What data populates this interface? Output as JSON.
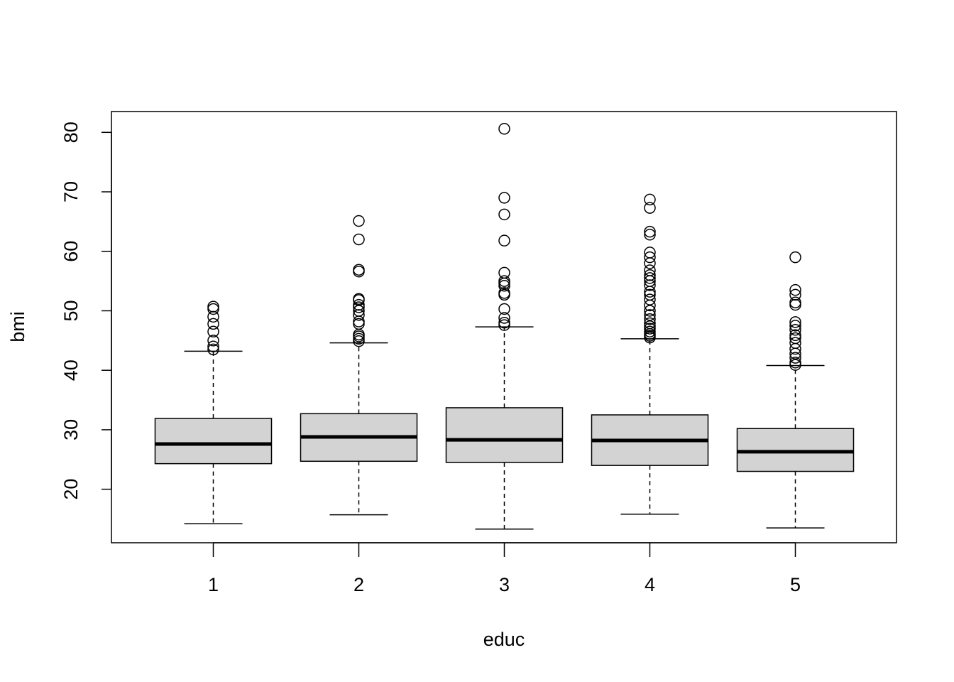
{
  "chart_data": {
    "type": "boxplot",
    "xlabel": "educ",
    "ylabel": "bmi",
    "ylim": [
      11,
      83.5
    ],
    "yticks": [
      20,
      30,
      40,
      50,
      60,
      70,
      80
    ],
    "categories": [
      "1",
      "2",
      "3",
      "4",
      "5"
    ],
    "grid": false,
    "legend": "none",
    "box_fill": "#d3d3d3",
    "boxes": [
      {
        "category": "1",
        "whisker_low": 14.2,
        "q1": 24.3,
        "median": 27.6,
        "q3": 31.9,
        "whisker_high": 43.2,
        "outliers": [
          43.5,
          44.0,
          45.0,
          46.5,
          47.8,
          49.0,
          50.3,
          50.7
        ]
      },
      {
        "category": "2",
        "whisker_low": 15.7,
        "q1": 24.7,
        "median": 28.8,
        "q3": 32.7,
        "whisker_high": 44.6,
        "outliers": [
          44.9,
          45.3,
          45.7,
          46.0,
          47.8,
          48.2,
          49.3,
          50.0,
          50.6,
          51.0,
          51.8,
          52.0,
          56.6,
          56.9,
          62.0,
          65.1
        ]
      },
      {
        "category": "3",
        "whisker_low": 13.3,
        "q1": 24.5,
        "median": 28.3,
        "q3": 33.7,
        "whisker_high": 47.3,
        "outliers": [
          47.6,
          48.0,
          48.8,
          50.3,
          52.7,
          53.0,
          54.2,
          54.6,
          55.0,
          56.4,
          61.8,
          66.2,
          69.0,
          80.6
        ]
      },
      {
        "category": "4",
        "whisker_low": 15.8,
        "q1": 24.0,
        "median": 28.2,
        "q3": 32.5,
        "whisker_high": 45.3,
        "outliers": [
          45.5,
          45.8,
          46.1,
          46.5,
          47.0,
          47.4,
          47.9,
          48.6,
          49.3,
          50.0,
          50.9,
          51.9,
          52.7,
          53.2,
          54.3,
          55.0,
          55.5,
          56.0,
          56.8,
          58.0,
          59.0,
          59.8,
          62.8,
          63.3,
          67.3,
          68.7
        ]
      },
      {
        "category": "5",
        "whisker_low": 13.5,
        "q1": 23.0,
        "median": 26.3,
        "q3": 30.2,
        "whisker_high": 40.8,
        "outliers": [
          40.9,
          41.3,
          42.1,
          42.8,
          43.6,
          44.6,
          45.4,
          45.9,
          46.8,
          47.5,
          48.1,
          51.0,
          51.4,
          52.7,
          53.5,
          59.0
        ]
      }
    ]
  }
}
